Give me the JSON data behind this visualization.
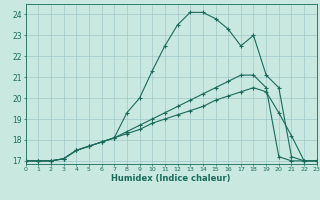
{
  "xlabel": "Humidex (Indice chaleur)",
  "bg_color": "#c8e8e0",
  "grid_color": "#a0c8c8",
  "line_color": "#1a6b5a",
  "line1_x": [
    0,
    1,
    2,
    3,
    4,
    5,
    6,
    7,
    8,
    9,
    10,
    11,
    12,
    13,
    14,
    15,
    16,
    17,
    18,
    19,
    20,
    21,
    22,
    23
  ],
  "line1_y": [
    17,
    17,
    17,
    17.1,
    17.5,
    17.7,
    17.9,
    18.1,
    19.3,
    20.0,
    21.3,
    22.5,
    23.5,
    24.1,
    24.1,
    23.8,
    23.3,
    22.5,
    23.0,
    21.1,
    20.5,
    17.2,
    17.0,
    17.0
  ],
  "line2_x": [
    0,
    1,
    2,
    3,
    4,
    5,
    6,
    7,
    8,
    9,
    10,
    11,
    12,
    13,
    14,
    15,
    16,
    17,
    18,
    19,
    20,
    21,
    22,
    23
  ],
  "line2_y": [
    17,
    17,
    17,
    17.1,
    17.5,
    17.7,
    17.9,
    18.1,
    18.4,
    18.7,
    19.0,
    19.3,
    19.6,
    19.9,
    20.2,
    20.5,
    20.8,
    21.1,
    21.1,
    20.5,
    17.2,
    17.0,
    17.0,
    17.0
  ],
  "line3_x": [
    0,
    1,
    2,
    3,
    4,
    5,
    6,
    7,
    8,
    9,
    10,
    11,
    12,
    13,
    14,
    15,
    16,
    17,
    18,
    19,
    20,
    21,
    22,
    23
  ],
  "line3_y": [
    17,
    17,
    17,
    17.1,
    17.5,
    17.7,
    17.9,
    18.1,
    18.3,
    18.5,
    18.8,
    19.0,
    19.2,
    19.4,
    19.6,
    19.9,
    20.1,
    20.3,
    20.5,
    20.3,
    19.3,
    18.2,
    17.0,
    17.0
  ],
  "xlim": [
    0,
    23
  ],
  "ylim": [
    16.85,
    24.5
  ],
  "yticks": [
    17,
    18,
    19,
    20,
    21,
    22,
    23,
    24
  ],
  "xticks": [
    0,
    1,
    2,
    3,
    4,
    5,
    6,
    7,
    8,
    9,
    10,
    11,
    12,
    13,
    14,
    15,
    16,
    17,
    18,
    19,
    20,
    21,
    22,
    23
  ],
  "marker": "+",
  "markersize": 3,
  "linewidth": 0.8
}
